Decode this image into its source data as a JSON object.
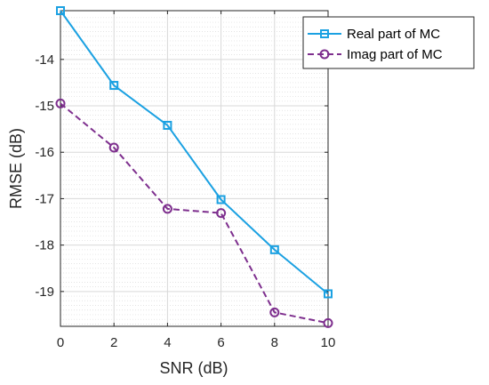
{
  "chart_data": {
    "type": "line",
    "xlabel": "SNR (dB)",
    "ylabel": "RMSE (dB)",
    "xlim": [
      0,
      10
    ],
    "ylim": [
      -19.75,
      -12.95
    ],
    "x_ticks": [
      0,
      2,
      4,
      6,
      8,
      10
    ],
    "y_ticks": [
      -19,
      -18,
      -17,
      -16,
      -15,
      -14
    ],
    "grid": true,
    "minor_grid": true,
    "legend_position": "top-right",
    "series": [
      {
        "name": "Real part of MC",
        "color": "#1BA1E2",
        "line_style": "solid",
        "marker": "square",
        "x": [
          0,
          2,
          4,
          6,
          8,
          10
        ],
        "y": [
          -12.95,
          -14.56,
          -15.42,
          -17.02,
          -18.1,
          -19.05
        ]
      },
      {
        "name": "Imag part of MC",
        "color": "#7E2F8E",
        "line_style": "dashed",
        "marker": "circle",
        "x": [
          0,
          2,
          4,
          6,
          8,
          10
        ],
        "y": [
          -14.95,
          -15.9,
          -17.22,
          -17.31,
          -19.45,
          -19.68
        ]
      }
    ]
  }
}
